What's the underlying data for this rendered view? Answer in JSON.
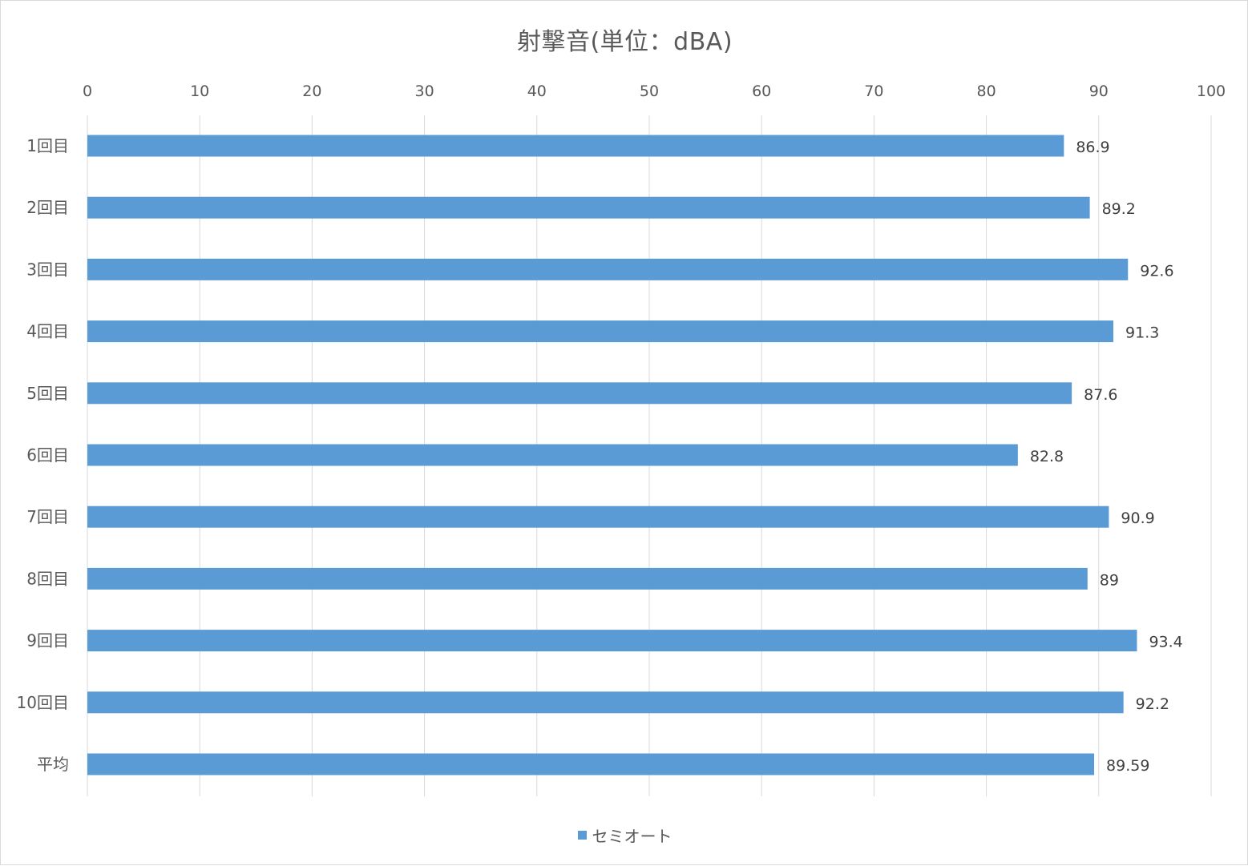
{
  "chart_data": {
    "type": "bar",
    "orientation": "horizontal",
    "title": "射撃音(単位：dBA)",
    "xlabel": "",
    "ylabel": "",
    "xlim": [
      0,
      100
    ],
    "x_ticks": [
      0,
      10,
      20,
      30,
      40,
      50,
      60,
      70,
      80,
      90,
      100
    ],
    "x_axis_position": "top",
    "grid": true,
    "legend_position": "bottom",
    "categories": [
      "1回目",
      "2回目",
      "3回目",
      "4回目",
      "5回目",
      "6回目",
      "7回目",
      "8回目",
      "9回目",
      "10回目",
      "平均"
    ],
    "series": [
      {
        "name": "セミオート",
        "color": "#5b9bd5",
        "values": [
          86.9,
          89.2,
          92.6,
          91.3,
          87.6,
          82.8,
          90.9,
          89,
          93.4,
          92.2,
          89.59
        ],
        "labels": [
          "86.9",
          "89.2",
          "92.6",
          "91.3",
          "87.6",
          "82.8",
          "90.9",
          "89",
          "93.4",
          "92.2",
          "89.59"
        ]
      }
    ]
  }
}
